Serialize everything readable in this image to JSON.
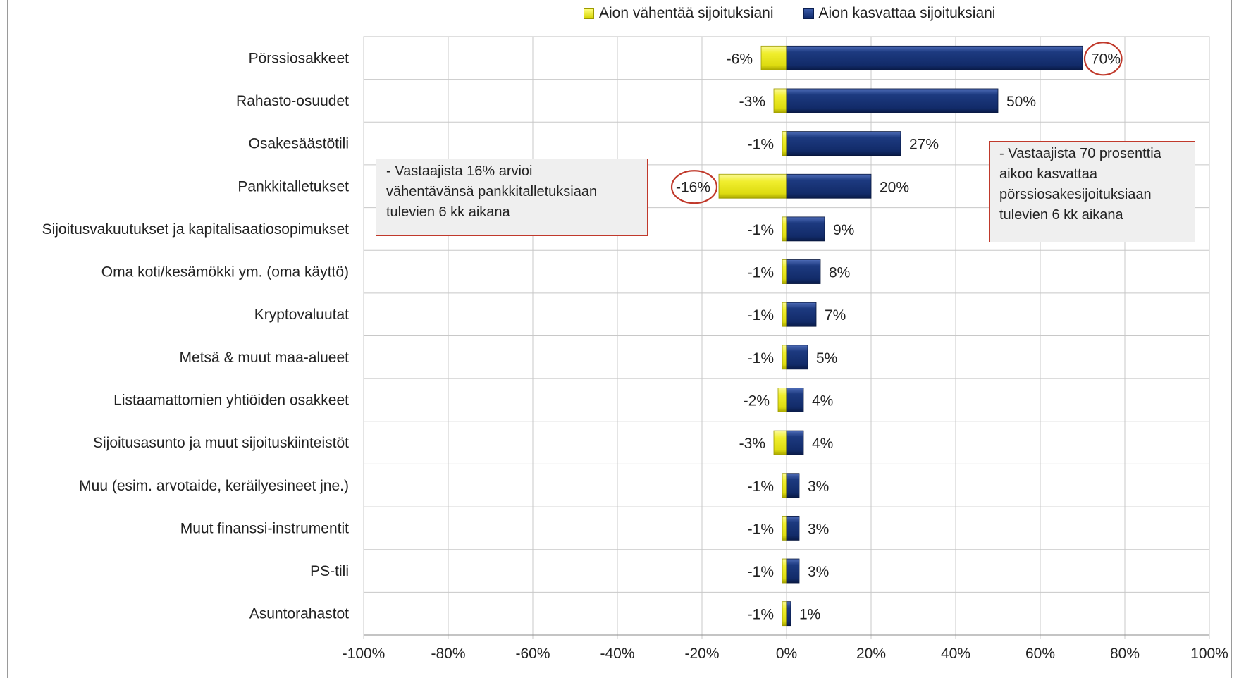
{
  "legend": {
    "neg_label": "Aion vähentää sijoituksiani",
    "pos_label": "Aion kasvattaa sijoituksiani"
  },
  "callouts": {
    "left": "- Vastaajista 16% arvioi\n  vähentävänsä pankkitalletuksiaan\n  tulevien 6 kk aikana",
    "right": "- Vastaajista 70 prosenttia\n  aikoo kasvattaa\n  pörssiosakesijoituksiaan\n  tulevien 6 kk aikana"
  },
  "colors": {
    "negative": "#e6e41a",
    "positive": "#14306f",
    "highlight_circle": "#c0392b",
    "grid": "#bfbfbf"
  },
  "chart_data": {
    "type": "bar",
    "orientation": "horizontal",
    "stacked": true,
    "categories": [
      "Pörssiosakkeet",
      "Rahasto-osuudet",
      "Osakesäästötili",
      "Pankkitalletukset",
      "Sijoitusvakuutukset ja kapitalisaatiosopimukset",
      "Oma koti/kesämökki ym. (oma käyttö)",
      "Kryptovaluutat",
      "Metsä & muut maa-alueet",
      "Listaamattomien yhtiöiden osakkeet",
      "Sijoitusasunto ja muut sijoituskiinteistöt",
      "Muu (esim. arvotaide, keräilyesineet jne.)",
      "Muut finanssi-instrumentit",
      "PS-tili",
      "Asuntorahastot"
    ],
    "series": [
      {
        "name": "Aion vähentää sijoituksiani",
        "values": [
          -6,
          -3,
          -1,
          -16,
          -1,
          -1,
          -1,
          -1,
          -2,
          -3,
          -1,
          -1,
          -1,
          -1
        ],
        "labels": [
          "-6%",
          "-3%",
          "-1%",
          "-16%",
          "-1%",
          "-1%",
          "-1%",
          "-1%",
          "-2%",
          "-3%",
          "-1%",
          "-1%",
          "-1%",
          "-1%"
        ]
      },
      {
        "name": "Aion kasvattaa sijoituksiani",
        "values": [
          70,
          50,
          27,
          20,
          9,
          8,
          7,
          5,
          4,
          4,
          3,
          3,
          3,
          1
        ],
        "labels": [
          "70%",
          "50%",
          "27%",
          "20%",
          "9%",
          "8%",
          "7%",
          "5%",
          "4%",
          "4%",
          "3%",
          "3%",
          "3%",
          "1%"
        ]
      }
    ],
    "highlighted": [
      {
        "series": 1,
        "index": 0
      },
      {
        "series": 0,
        "index": 3
      }
    ],
    "xlim": [
      -100,
      100
    ],
    "xticks": [
      -100,
      -80,
      -60,
      -40,
      -20,
      0,
      20,
      40,
      60,
      80,
      100
    ],
    "xtick_labels": [
      "-100%",
      "-80%",
      "-60%",
      "-40%",
      "-20%",
      "0%",
      "20%",
      "40%",
      "60%",
      "80%",
      "100%"
    ],
    "grid": true,
    "legend_position": "top"
  }
}
